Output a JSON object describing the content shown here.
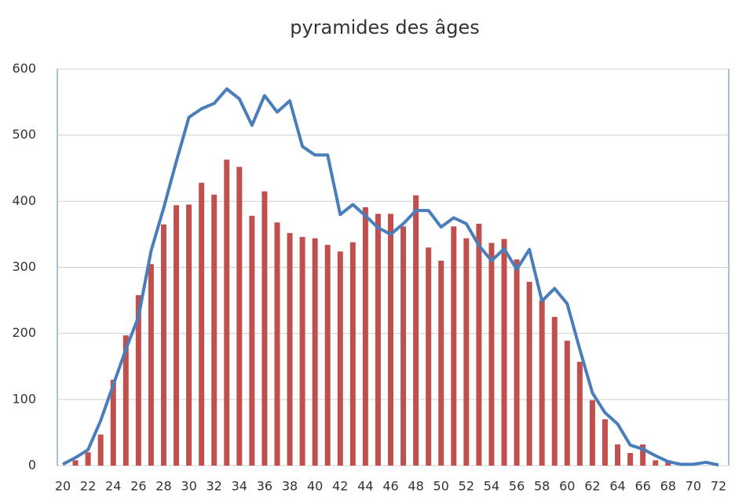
{
  "chart_data": {
    "type": "bar",
    "title": "pyramides des âges",
    "categories": [
      "20",
      null,
      "22",
      null,
      "24",
      null,
      "26",
      null,
      "28",
      null,
      "30",
      null,
      "32",
      null,
      "34",
      null,
      "36",
      null,
      "38",
      null,
      "40",
      null,
      "42",
      null,
      "44",
      null,
      "46",
      null,
      "48",
      null,
      "50",
      null,
      "52",
      null,
      "54",
      null,
      "56",
      null,
      "58",
      null,
      "60",
      null,
      "62",
      null,
      "64",
      null,
      "66",
      null,
      "68",
      null,
      "70",
      null,
      "72"
    ],
    "series": [
      {
        "type": "bar",
        "color": "#c0504d",
        "values": [
          0,
          8,
          20,
          47,
          130,
          197,
          258,
          305,
          365,
          394,
          395,
          428,
          410,
          463,
          452,
          378,
          415,
          368,
          352,
          346,
          344,
          334,
          324,
          338,
          391,
          381,
          381,
          362,
          409,
          330,
          310,
          362,
          344,
          366,
          337,
          343,
          312,
          278,
          250,
          225,
          189,
          157,
          99,
          70,
          32,
          19,
          32,
          8,
          8,
          0,
          0,
          0,
          0
        ]
      },
      {
        "type": "line",
        "color": "#4a7ebb",
        "values": [
          2,
          12,
          24,
          68,
          122,
          176,
          225,
          325,
          390,
          460,
          527,
          540,
          548,
          570,
          555,
          515,
          560,
          535,
          552,
          483,
          470,
          470,
          380,
          395,
          378,
          360,
          350,
          366,
          386,
          386,
          361,
          375,
          366,
          333,
          310,
          328,
          297,
          327,
          249,
          268,
          245,
          176,
          110,
          80,
          63,
          31,
          25,
          15,
          6,
          2,
          2,
          5,
          1
        ]
      }
    ],
    "ylim": [
      0,
      600
    ],
    "yticks": [
      0,
      100,
      200,
      300,
      400,
      500,
      600
    ],
    "grid": true
  }
}
